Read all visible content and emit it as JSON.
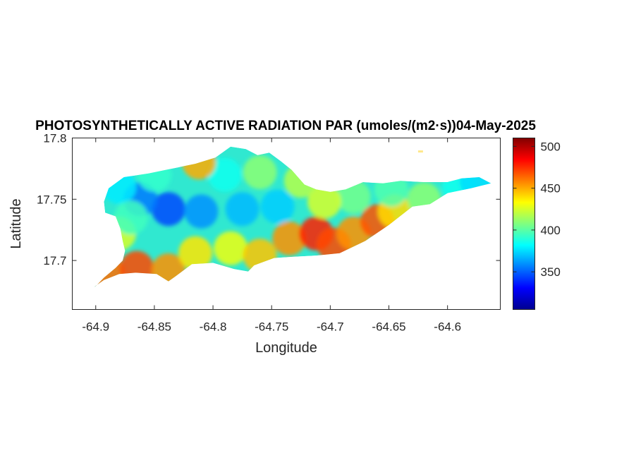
{
  "chart_data": {
    "type": "heatmap",
    "title": "PHOTOSYNTHETICALLY ACTIVE RADIATION PAR (umoles/(m2·s))04-May-2025",
    "xlabel": "Longitude",
    "ylabel": "Latitude",
    "xlim": [
      -64.92,
      -64.555
    ],
    "ylim": [
      17.66,
      17.8
    ],
    "xticks": [
      -64.9,
      -64.85,
      -64.8,
      -64.75,
      -64.7,
      -64.65,
      -64.6
    ],
    "xtick_labels": [
      "-64.9",
      "-64.85",
      "-64.8",
      "-64.75",
      "-64.7",
      "-64.65",
      "-64.6"
    ],
    "yticks": [
      17.7,
      17.75,
      17.8
    ],
    "ytick_labels": [
      "17.7",
      "17.75",
      "17.8"
    ],
    "colormap": "jet",
    "clim": [
      305,
      510
    ],
    "colorbar_ticks": [
      350,
      400,
      450,
      500
    ],
    "colorbar_tick_labels": [
      "350",
      "400",
      "450",
      "500"
    ],
    "grid": false,
    "outline": [
      [
        -64.9,
        17.679
      ],
      [
        -64.893,
        17.686
      ],
      [
        -64.883,
        17.694
      ],
      [
        -64.877,
        17.7
      ],
      [
        -64.875,
        17.708
      ],
      [
        -64.877,
        17.716
      ],
      [
        -64.879,
        17.726
      ],
      [
        -64.883,
        17.736
      ],
      [
        -64.892,
        17.739
      ],
      [
        -64.893,
        17.748
      ],
      [
        -64.889,
        17.759
      ],
      [
        -64.876,
        17.768
      ],
      [
        -64.855,
        17.771
      ],
      [
        -64.835,
        17.775
      ],
      [
        -64.815,
        17.779
      ],
      [
        -64.798,
        17.784
      ],
      [
        -64.785,
        17.793
      ],
      [
        -64.772,
        17.791
      ],
      [
        -64.762,
        17.786
      ],
      [
        -64.752,
        17.788
      ],
      [
        -64.742,
        17.781
      ],
      [
        -64.733,
        17.774
      ],
      [
        -64.722,
        17.762
      ],
      [
        -64.712,
        17.758
      ],
      [
        -64.7,
        17.756
      ],
      [
        -64.687,
        17.758
      ],
      [
        -64.672,
        17.764
      ],
      [
        -64.655,
        17.763
      ],
      [
        -64.64,
        17.765
      ],
      [
        -64.62,
        17.764
      ],
      [
        -64.6,
        17.764
      ],
      [
        -64.588,
        17.767
      ],
      [
        -64.573,
        17.768
      ],
      [
        -64.563,
        17.763
      ],
      [
        -64.58,
        17.759
      ],
      [
        -64.6,
        17.755
      ],
      [
        -64.615,
        17.746
      ],
      [
        -64.63,
        17.744
      ],
      [
        -64.65,
        17.729
      ],
      [
        -64.67,
        17.716
      ],
      [
        -64.692,
        17.706
      ],
      [
        -64.712,
        17.704
      ],
      [
        -64.732,
        17.703
      ],
      [
        -64.748,
        17.702
      ],
      [
        -64.765,
        17.696
      ],
      [
        -64.77,
        17.691
      ],
      [
        -64.782,
        17.693
      ],
      [
        -64.8,
        17.698
      ],
      [
        -64.818,
        17.697
      ],
      [
        -64.832,
        17.687
      ],
      [
        -64.838,
        17.683
      ],
      [
        -64.848,
        17.689
      ],
      [
        -64.866,
        17.69
      ],
      [
        -64.88,
        17.689
      ],
      [
        -64.893,
        17.684
      ],
      [
        -64.902,
        17.678
      ]
    ],
    "islet": [
      -64.623,
      17.789
    ],
    "hotspots": [
      {
        "lon": -64.838,
        "lat": 17.742,
        "value": 345
      },
      {
        "lon": -64.862,
        "lat": 17.75,
        "value": 355
      },
      {
        "lon": -64.81,
        "lat": 17.74,
        "value": 360
      },
      {
        "lon": -64.775,
        "lat": 17.742,
        "value": 368
      },
      {
        "lon": -64.745,
        "lat": 17.744,
        "value": 372
      },
      {
        "lon": -64.88,
        "lat": 17.76,
        "value": 378
      },
      {
        "lon": -64.79,
        "lat": 17.77,
        "value": 385
      },
      {
        "lon": -64.76,
        "lat": 17.772,
        "value": 410
      },
      {
        "lon": -64.812,
        "lat": 17.78,
        "value": 450
      },
      {
        "lon": -64.88,
        "lat": 17.722,
        "value": 425
      },
      {
        "lon": -64.89,
        "lat": 17.69,
        "value": 462
      },
      {
        "lon": -64.865,
        "lat": 17.694,
        "value": 470
      },
      {
        "lon": -64.838,
        "lat": 17.692,
        "value": 455
      },
      {
        "lon": -64.815,
        "lat": 17.706,
        "value": 438
      },
      {
        "lon": -64.785,
        "lat": 17.71,
        "value": 430
      },
      {
        "lon": -64.76,
        "lat": 17.704,
        "value": 445
      },
      {
        "lon": -64.735,
        "lat": 17.718,
        "value": 455
      },
      {
        "lon": -64.712,
        "lat": 17.722,
        "value": 478
      },
      {
        "lon": -64.697,
        "lat": 17.713,
        "value": 470
      },
      {
        "lon": -64.68,
        "lat": 17.722,
        "value": 455
      },
      {
        "lon": -64.66,
        "lat": 17.732,
        "value": 468
      },
      {
        "lon": -64.645,
        "lat": 17.74,
        "value": 440
      },
      {
        "lon": -64.648,
        "lat": 17.758,
        "value": 398
      },
      {
        "lon": -64.68,
        "lat": 17.752,
        "value": 405
      },
      {
        "lon": -64.705,
        "lat": 17.748,
        "value": 425
      },
      {
        "lon": -64.62,
        "lat": 17.75,
        "value": 410
      },
      {
        "lon": -64.59,
        "lat": 17.76,
        "value": 385
      },
      {
        "lon": -64.575,
        "lat": 17.765,
        "value": 375
      },
      {
        "lon": -64.725,
        "lat": 17.765,
        "value": 418
      },
      {
        "lon": -64.85,
        "lat": 17.77,
        "value": 392
      },
      {
        "lon": -64.87,
        "lat": 17.735,
        "value": 395
      }
    ]
  }
}
